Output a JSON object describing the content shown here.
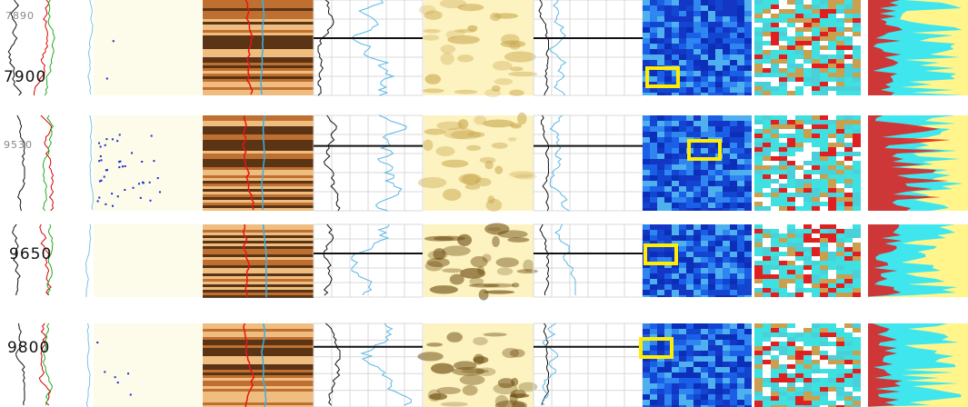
{
  "panels": [
    {
      "depth_labels": [
        "7890",
        "7900"
      ]
    },
    {
      "depth_labels": [
        "9530"
      ]
    },
    {
      "depth_labels": [
        "9650"
      ]
    },
    {
      "depth_labels": [
        "9800"
      ]
    }
  ]
}
